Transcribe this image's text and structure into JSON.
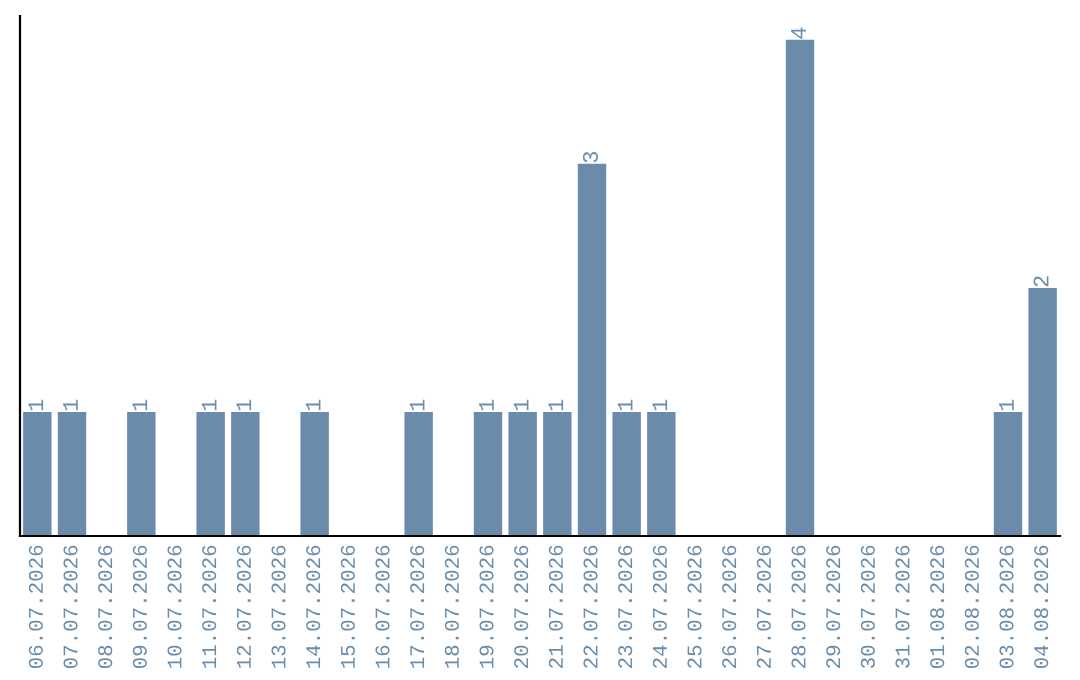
{
  "chart_data": {
    "type": "bar",
    "color": "#6a8caa",
    "categories": [
      "06.07.2026",
      "07.07.2026",
      "08.07.2026",
      "09.07.2026",
      "10.07.2026",
      "11.07.2026",
      "12.07.2026",
      "13.07.2026",
      "14.07.2026",
      "15.07.2026",
      "16.07.2026",
      "17.07.2026",
      "18.07.2026",
      "19.07.2026",
      "20.07.2026",
      "21.07.2026",
      "22.07.2026",
      "23.07.2026",
      "24.07.2026",
      "25.07.2026",
      "26.07.2026",
      "27.07.2026",
      "28.07.2026",
      "29.07.2026",
      "30.07.2026",
      "31.07.2026",
      "01.08.2026",
      "02.08.2026",
      "03.08.2026",
      "04.08.2026"
    ],
    "values": [
      1,
      1,
      0,
      1,
      0,
      1,
      1,
      0,
      1,
      0,
      0,
      1,
      0,
      1,
      1,
      1,
      3,
      1,
      1,
      0,
      0,
      0,
      4,
      0,
      0,
      0,
      0,
      0,
      1,
      2
    ],
    "value_labels": [
      "1",
      "1",
      null,
      "1",
      null,
      "1",
      "1",
      null,
      "1",
      null,
      null,
      "1",
      null,
      "1",
      "1",
      "1",
      "3",
      "1",
      "1",
      null,
      null,
      null,
      "4",
      null,
      null,
      null,
      null,
      null,
      "1",
      "2"
    ],
    "grid": false,
    "legend": false
  }
}
